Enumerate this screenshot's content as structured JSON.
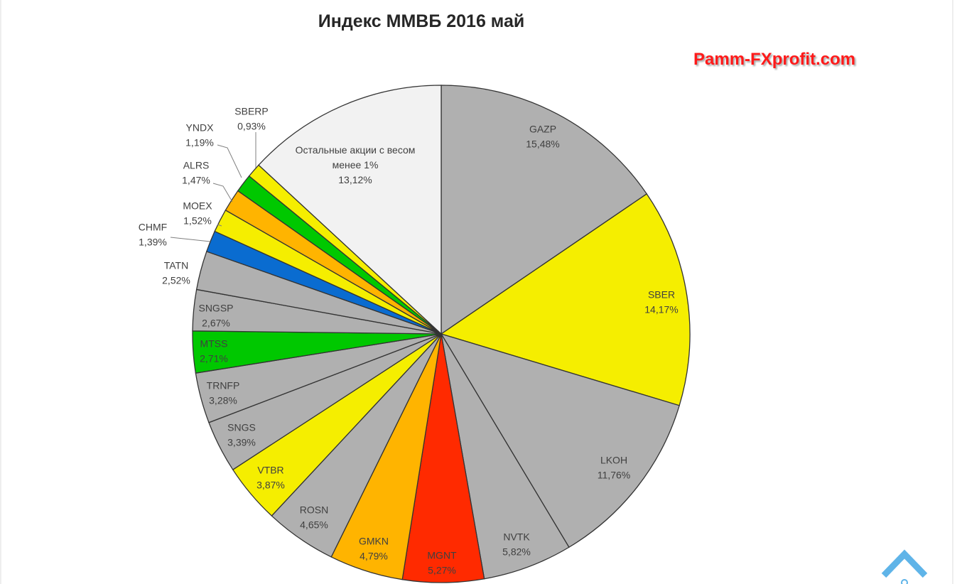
{
  "chart_data": {
    "type": "pie",
    "title": "Индекс ММВБ 2016 май",
    "slices": [
      {
        "name": "GAZP",
        "value": 15.48,
        "label": "15,48%",
        "color": "#b0b0b0"
      },
      {
        "name": "SBER",
        "value": 14.17,
        "label": "14,17%",
        "color": "#f5ee00"
      },
      {
        "name": "LKOH",
        "value": 11.76,
        "label": "11,76%",
        "color": "#b0b0b0"
      },
      {
        "name": "NVTK",
        "value": 5.82,
        "label": "5,82%",
        "color": "#b0b0b0"
      },
      {
        "name": "MGNT",
        "value": 5.27,
        "label": "5,27%",
        "color": "#ff2a00"
      },
      {
        "name": "GMKN",
        "value": 4.79,
        "label": "4,79%",
        "color": "#ffb400"
      },
      {
        "name": "ROSN",
        "value": 4.65,
        "label": "4,65%",
        "color": "#b0b0b0"
      },
      {
        "name": "VTBR",
        "value": 3.87,
        "label": "3,87%",
        "color": "#f5ee00"
      },
      {
        "name": "SNGS",
        "value": 3.39,
        "label": "3,39%",
        "color": "#b0b0b0"
      },
      {
        "name": "TRNFP",
        "value": 3.28,
        "label": "3,28%",
        "color": "#b0b0b0"
      },
      {
        "name": "MTSS",
        "value": 2.71,
        "label": "2,71%",
        "color": "#00c800"
      },
      {
        "name": "SNGSP",
        "value": 2.67,
        "label": "2,67%",
        "color": "#b0b0b0"
      },
      {
        "name": "TATN",
        "value": 2.52,
        "label": "2,52%",
        "color": "#b0b0b0"
      },
      {
        "name": "CHMF",
        "value": 1.39,
        "label": "1,39%",
        "color": "#0a6cd0"
      },
      {
        "name": "MOEX",
        "value": 1.52,
        "label": "1,52%",
        "color": "#f5ee00"
      },
      {
        "name": "ALRS",
        "value": 1.47,
        "label": "1,47%",
        "color": "#ffb400"
      },
      {
        "name": "YNDX",
        "value": 1.19,
        "label": "1,19%",
        "color": "#00c800"
      },
      {
        "name": "SBERP",
        "value": 0.93,
        "label": "0,93%",
        "color": "#f5ee00"
      },
      {
        "name": "Остальные акции с весом менее 1%",
        "value": 13.12,
        "label": "13,12%",
        "color": "#f2f2f2"
      }
    ]
  },
  "watermark": "Pamm-FXprofit.com",
  "scroll_top_icon": "chevron-up-icon",
  "colors": {
    "outline": "#333333",
    "watermark": "#ff1a1a",
    "scroll_button": "#5fb4e8"
  }
}
